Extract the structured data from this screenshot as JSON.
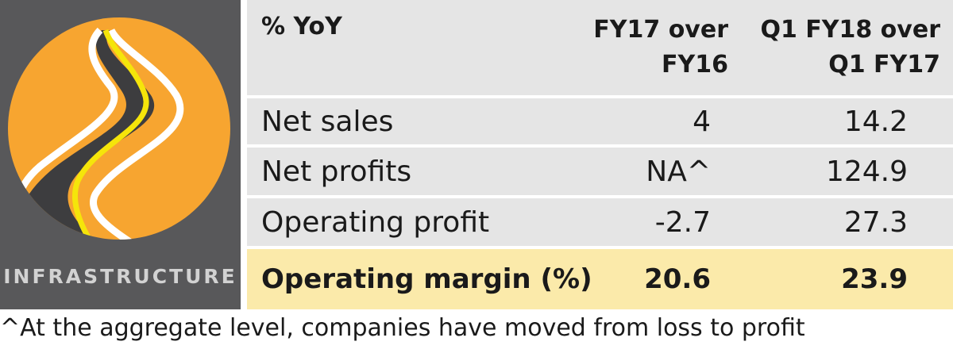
{
  "panel": {
    "label": "INFRASTRUCTURE",
    "colors": {
      "background": "#58585a",
      "sun": "#f7a530",
      "road": "#3d3d3f",
      "center_line": "#f5e50a",
      "edge": "#ffffff"
    },
    "icon": "winding-road-icon"
  },
  "chart_data": {
    "type": "table",
    "columns": [
      "% YoY",
      "FY17 over FY16",
      "Q1 FY18 over Q1 FY17"
    ],
    "header": {
      "label": "% YoY",
      "col1_line1": "FY17 over",
      "col1_line2": "FY16",
      "col2_line1": "Q1 FY18 over",
      "col2_line2": "Q1 FY17"
    },
    "rows": [
      {
        "label": "Net sales",
        "fy17_over_fy16": "4",
        "q1fy18_over_q1fy17": "14.2"
      },
      {
        "label": "Net profits",
        "fy17_over_fy16": "NA^",
        "q1fy18_over_q1fy17": "124.9"
      },
      {
        "label": "Operating profit",
        "fy17_over_fy16": "-2.7",
        "q1fy18_over_q1fy17": "27.3"
      },
      {
        "label": "Operating margin (%)",
        "fy17_over_fy16": "20.6",
        "q1fy18_over_q1fy17": "23.9",
        "highlight": true
      }
    ],
    "highlight_color": "#fbeaaa",
    "row_color": "#e5e5e5"
  },
  "footnote": "^At the aggregate level, companies have moved from loss to profit"
}
